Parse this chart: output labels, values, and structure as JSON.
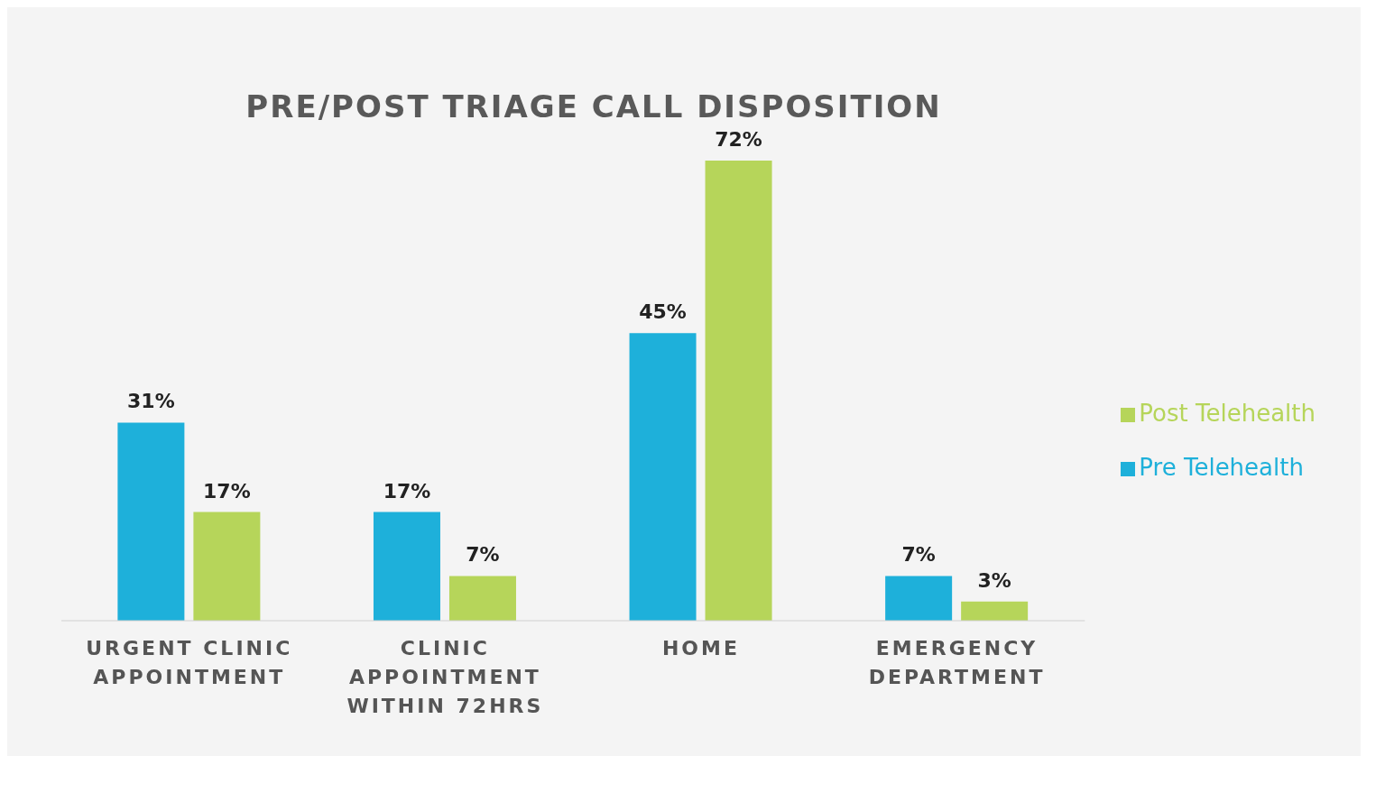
{
  "chart_data": {
    "type": "bar",
    "title": "PRE/POST TRIAGE CALL DISPOSITION",
    "categories": [
      "URGENT CLINIC APPOINTMENT",
      "CLINIC APPOINTMENT WITHIN 72HRS",
      "HOME",
      "EMERGENCY DEPARTMENT"
    ],
    "series": [
      {
        "name": "Pre Telehealth",
        "color": "#1eb0da",
        "values": [
          31,
          17,
          45,
          7
        ],
        "value_labels": [
          "31%",
          "17%",
          "45%",
          "7%"
        ]
      },
      {
        "name": "Post Telehealth",
        "color": "#b6d55a",
        "values": [
          17,
          7,
          72,
          3
        ],
        "value_labels": [
          "17%",
          "7%",
          "72%",
          "3%"
        ]
      }
    ],
    "legend": "right"
  }
}
